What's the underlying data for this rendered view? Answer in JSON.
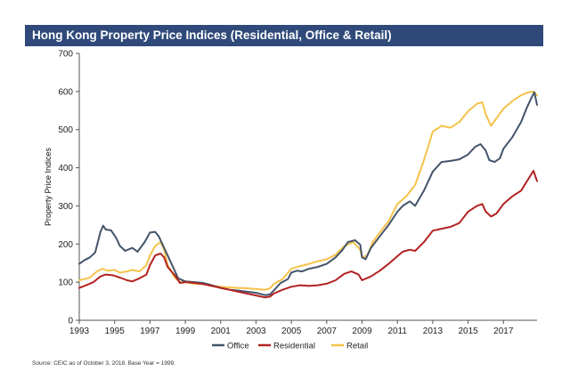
{
  "chart_data": {
    "type": "line",
    "title": "Hong Kong Property Price Indices (Residential, Office & Retail)",
    "ylabel": "Property Price Indices",
    "xlabel": "",
    "ylim": [
      0,
      700
    ],
    "xlim": [
      1993,
      2018.9
    ],
    "yticks": [
      0,
      100,
      200,
      300,
      400,
      500,
      600,
      700
    ],
    "xticks": [
      1993,
      1995,
      1997,
      1999,
      2001,
      2003,
      2005,
      2007,
      2009,
      2011,
      2013,
      2015,
      2017
    ],
    "grid": false,
    "legend_position": "bottom",
    "source": "Source: CEIC as of October 3, 2018. Base Year = 1999.",
    "colors": {
      "Office": "#44546a",
      "Residential": "#b22222",
      "Retail": "#f5c24a",
      "title_bar": "#2f4a7a"
    },
    "series": [
      {
        "name": "Office",
        "points": [
          [
            1993.0,
            148
          ],
          [
            1993.3,
            158
          ],
          [
            1993.6,
            165
          ],
          [
            1993.9,
            178
          ],
          [
            1994.2,
            232
          ],
          [
            1994.35,
            248
          ],
          [
            1994.5,
            238
          ],
          [
            1994.8,
            236
          ],
          [
            1995.1,
            215
          ],
          [
            1995.3,
            195
          ],
          [
            1995.6,
            182
          ],
          [
            1996.0,
            190
          ],
          [
            1996.3,
            180
          ],
          [
            1996.7,
            205
          ],
          [
            1997.0,
            230
          ],
          [
            1997.3,
            232
          ],
          [
            1997.5,
            220
          ],
          [
            1997.7,
            200
          ],
          [
            1998.0,
            170
          ],
          [
            1998.3,
            140
          ],
          [
            1998.6,
            110
          ],
          [
            1999.0,
            102
          ],
          [
            1999.5,
            100
          ],
          [
            2000.0,
            98
          ],
          [
            2000.5,
            92
          ],
          [
            2001.0,
            85
          ],
          [
            2001.5,
            80
          ],
          [
            2002.0,
            78
          ],
          [
            2002.5,
            75
          ],
          [
            2003.0,
            72
          ],
          [
            2003.5,
            66
          ],
          [
            2003.8,
            68
          ],
          [
            2004.0,
            78
          ],
          [
            2004.4,
            98
          ],
          [
            2004.8,
            108
          ],
          [
            2005.0,
            125
          ],
          [
            2005.3,
            130
          ],
          [
            2005.6,
            128
          ],
          [
            2006.0,
            135
          ],
          [
            2006.5,
            140
          ],
          [
            2007.0,
            148
          ],
          [
            2007.5,
            165
          ],
          [
            2007.9,
            185
          ],
          [
            2008.2,
            205
          ],
          [
            2008.6,
            210
          ],
          [
            2008.9,
            198
          ],
          [
            2009.0,
            165
          ],
          [
            2009.2,
            160
          ],
          [
            2009.5,
            190
          ],
          [
            2010.0,
            220
          ],
          [
            2010.5,
            250
          ],
          [
            2011.0,
            285
          ],
          [
            2011.3,
            300
          ],
          [
            2011.7,
            312
          ],
          [
            2012.0,
            300
          ],
          [
            2012.5,
            340
          ],
          [
            2013.0,
            390
          ],
          [
            2013.5,
            415
          ],
          [
            2014.0,
            418
          ],
          [
            2014.5,
            422
          ],
          [
            2015.0,
            435
          ],
          [
            2015.4,
            455
          ],
          [
            2015.7,
            462
          ],
          [
            2016.0,
            445
          ],
          [
            2016.2,
            420
          ],
          [
            2016.5,
            415
          ],
          [
            2016.8,
            425
          ],
          [
            2017.0,
            450
          ],
          [
            2017.5,
            480
          ],
          [
            2018.0,
            520
          ],
          [
            2018.3,
            555
          ],
          [
            2018.6,
            585
          ],
          [
            2018.75,
            598
          ],
          [
            2018.9,
            565
          ]
        ]
      },
      {
        "name": "Residential",
        "points": [
          [
            1993.0,
            85
          ],
          [
            1993.4,
            92
          ],
          [
            1993.8,
            100
          ],
          [
            1994.2,
            115
          ],
          [
            1994.5,
            120
          ],
          [
            1994.9,
            118
          ],
          [
            1995.3,
            112
          ],
          [
            1995.7,
            105
          ],
          [
            1996.0,
            102
          ],
          [
            1996.4,
            110
          ],
          [
            1996.8,
            120
          ],
          [
            1997.0,
            145
          ],
          [
            1997.3,
            170
          ],
          [
            1997.6,
            175
          ],
          [
            1997.8,
            165
          ],
          [
            1998.0,
            140
          ],
          [
            1998.4,
            118
          ],
          [
            1998.7,
            98
          ],
          [
            1999.0,
            100
          ],
          [
            1999.5,
            98
          ],
          [
            2000.0,
            95
          ],
          [
            2000.5,
            90
          ],
          [
            2001.0,
            85
          ],
          [
            2001.5,
            80
          ],
          [
            2002.0,
            75
          ],
          [
            2002.5,
            70
          ],
          [
            2003.0,
            65
          ],
          [
            2003.5,
            60
          ],
          [
            2003.8,
            62
          ],
          [
            2004.0,
            70
          ],
          [
            2004.5,
            80
          ],
          [
            2005.0,
            88
          ],
          [
            2005.5,
            92
          ],
          [
            2006.0,
            90
          ],
          [
            2006.5,
            92
          ],
          [
            2007.0,
            96
          ],
          [
            2007.5,
            105
          ],
          [
            2008.0,
            122
          ],
          [
            2008.4,
            128
          ],
          [
            2008.8,
            120
          ],
          [
            2009.0,
            105
          ],
          [
            2009.5,
            115
          ],
          [
            2010.0,
            130
          ],
          [
            2010.5,
            148
          ],
          [
            2011.0,
            168
          ],
          [
            2011.3,
            180
          ],
          [
            2011.7,
            185
          ],
          [
            2012.0,
            182
          ],
          [
            2012.5,
            205
          ],
          [
            2013.0,
            235
          ],
          [
            2013.5,
            240
          ],
          [
            2014.0,
            245
          ],
          [
            2014.5,
            255
          ],
          [
            2015.0,
            285
          ],
          [
            2015.5,
            300
          ],
          [
            2015.8,
            305
          ],
          [
            2016.0,
            285
          ],
          [
            2016.3,
            272
          ],
          [
            2016.6,
            280
          ],
          [
            2017.0,
            305
          ],
          [
            2017.5,
            325
          ],
          [
            2018.0,
            340
          ],
          [
            2018.4,
            370
          ],
          [
            2018.7,
            392
          ],
          [
            2018.9,
            365
          ]
        ]
      },
      {
        "name": "Retail",
        "points": [
          [
            1993.0,
            105
          ],
          [
            1993.3,
            108
          ],
          [
            1993.6,
            112
          ],
          [
            1994.0,
            128
          ],
          [
            1994.3,
            135
          ],
          [
            1994.6,
            130
          ],
          [
            1995.0,
            132
          ],
          [
            1995.3,
            125
          ],
          [
            1995.7,
            128
          ],
          [
            1996.0,
            132
          ],
          [
            1996.4,
            128
          ],
          [
            1996.8,
            145
          ],
          [
            1997.0,
            170
          ],
          [
            1997.3,
            195
          ],
          [
            1997.6,
            205
          ],
          [
            1997.8,
            185
          ],
          [
            1998.0,
            145
          ],
          [
            1998.4,
            112
          ],
          [
            1998.7,
            100
          ],
          [
            1999.0,
            100
          ],
          [
            1999.5,
            96
          ],
          [
            2000.0,
            95
          ],
          [
            2000.5,
            90
          ],
          [
            2001.0,
            88
          ],
          [
            2001.5,
            86
          ],
          [
            2002.0,
            85
          ],
          [
            2002.5,
            84
          ],
          [
            2003.0,
            82
          ],
          [
            2003.5,
            80
          ],
          [
            2003.8,
            84
          ],
          [
            2004.0,
            95
          ],
          [
            2004.5,
            108
          ],
          [
            2005.0,
            135
          ],
          [
            2005.5,
            142
          ],
          [
            2006.0,
            148
          ],
          [
            2006.5,
            155
          ],
          [
            2007.0,
            160
          ],
          [
            2007.5,
            172
          ],
          [
            2008.0,
            195
          ],
          [
            2008.5,
            205
          ],
          [
            2008.9,
            185
          ],
          [
            2009.0,
            165
          ],
          [
            2009.3,
            170
          ],
          [
            2009.6,
            205
          ],
          [
            2010.0,
            230
          ],
          [
            2010.5,
            260
          ],
          [
            2011.0,
            305
          ],
          [
            2011.5,
            325
          ],
          [
            2012.0,
            355
          ],
          [
            2012.5,
            420
          ],
          [
            2013.0,
            495
          ],
          [
            2013.5,
            510
          ],
          [
            2014.0,
            505
          ],
          [
            2014.5,
            520
          ],
          [
            2015.0,
            548
          ],
          [
            2015.5,
            568
          ],
          [
            2015.8,
            572
          ],
          [
            2016.0,
            540
          ],
          [
            2016.3,
            510
          ],
          [
            2016.6,
            530
          ],
          [
            2017.0,
            555
          ],
          [
            2017.5,
            575
          ],
          [
            2018.0,
            590
          ],
          [
            2018.4,
            598
          ],
          [
            2018.7,
            600
          ],
          [
            2018.9,
            590
          ]
        ]
      }
    ]
  }
}
